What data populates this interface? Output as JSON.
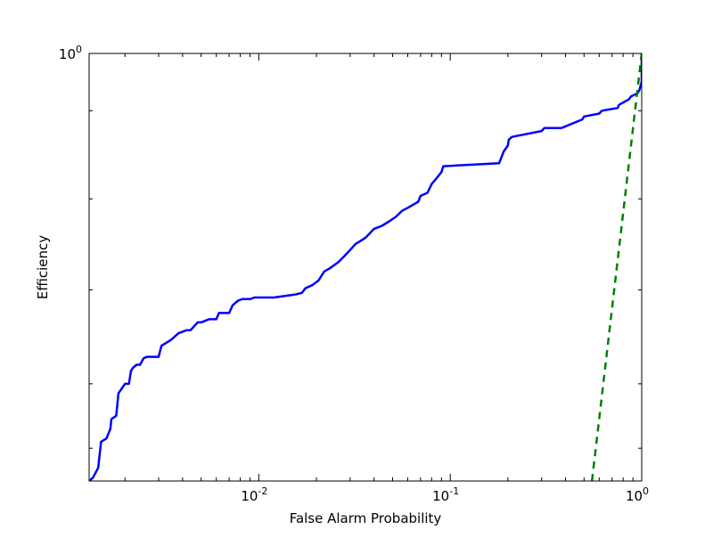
{
  "chart_data": {
    "type": "line",
    "title": "",
    "xlabel": "False Alarm Probability",
    "ylabel": "Efficiency",
    "x_scale": "log",
    "y_scale": "log",
    "xlim": [
      0.0013,
      1.0
    ],
    "ylim": [
      0.86,
      1.0
    ],
    "grid": false,
    "x_ticks": [
      {
        "value": 0.01,
        "base": "10",
        "exp": "-2"
      },
      {
        "value": 0.1,
        "base": "10",
        "exp": "-1"
      },
      {
        "value": 1.0,
        "base": "10",
        "exp": "0"
      }
    ],
    "y_ticks": [
      {
        "value": 1.0,
        "base": "10",
        "exp": "0"
      }
    ],
    "y_minor_ticks": [
      0.87,
      0.89,
      0.92,
      0.95,
      0.98
    ],
    "x_minor_ticks": [
      0.002,
      0.003,
      0.004,
      0.005,
      0.006,
      0.007,
      0.008,
      0.009,
      0.02,
      0.03,
      0.04,
      0.05,
      0.06,
      0.07,
      0.08,
      0.09,
      0.2,
      0.3,
      0.4,
      0.5,
      0.6,
      0.7,
      0.8,
      0.9
    ],
    "series": [
      {
        "color": "#0000ff",
        "style": "solid",
        "x": [
          0.0013,
          0.00136,
          0.00145,
          0.0015,
          0.0016,
          0.00168,
          0.0017,
          0.0018,
          0.00185,
          0.00195,
          0.002,
          0.0021,
          0.00215,
          0.0022,
          0.0023,
          0.0024,
          0.0025,
          0.0026,
          0.003,
          0.0031,
          0.0033,
          0.0035,
          0.0038,
          0.0042,
          0.0044,
          0.0048,
          0.005,
          0.0055,
          0.006,
          0.0062,
          0.007,
          0.0073,
          0.0078,
          0.0082,
          0.009,
          0.0095,
          0.012,
          0.0155,
          0.0168,
          0.0175,
          0.019,
          0.0205,
          0.022,
          0.0235,
          0.026,
          0.028,
          0.03,
          0.032,
          0.034,
          0.036,
          0.04,
          0.044,
          0.048,
          0.052,
          0.056,
          0.06,
          0.068,
          0.07,
          0.076,
          0.08,
          0.085,
          0.09,
          0.092,
          0.18,
          0.185,
          0.19,
          0.2,
          0.202,
          0.21,
          0.3,
          0.31,
          0.38,
          0.49,
          0.5,
          0.6,
          0.62,
          0.75,
          0.76,
          0.86,
          0.88,
          0.95,
          0.97,
          1.0,
          1.0
        ],
        "y": [
          0.86,
          0.861,
          0.864,
          0.872,
          0.873,
          0.876,
          0.879,
          0.88,
          0.887,
          0.889,
          0.89,
          0.89,
          0.894,
          0.895,
          0.896,
          0.896,
          0.898,
          0.8985,
          0.8985,
          0.902,
          0.903,
          0.904,
          0.906,
          0.907,
          0.907,
          0.9095,
          0.9095,
          0.9105,
          0.9105,
          0.9125,
          0.9125,
          0.915,
          0.9165,
          0.917,
          0.917,
          0.9175,
          0.9175,
          0.9185,
          0.919,
          0.9205,
          0.9215,
          0.923,
          0.926,
          0.927,
          0.929,
          0.931,
          0.933,
          0.935,
          0.936,
          0.937,
          0.94,
          0.941,
          0.9425,
          0.944,
          0.946,
          0.947,
          0.949,
          0.951,
          0.952,
          0.955,
          0.957,
          0.959,
          0.961,
          0.962,
          0.964,
          0.966,
          0.968,
          0.97,
          0.971,
          0.973,
          0.974,
          0.974,
          0.977,
          0.978,
          0.979,
          0.98,
          0.981,
          0.982,
          0.984,
          0.985,
          0.986,
          0.987,
          0.99,
          1.0
        ]
      },
      {
        "color": "#008000",
        "style": "dashed",
        "x": [
          0.55,
          1.0
        ],
        "y": [
          0.86,
          1.0
        ]
      }
    ]
  }
}
